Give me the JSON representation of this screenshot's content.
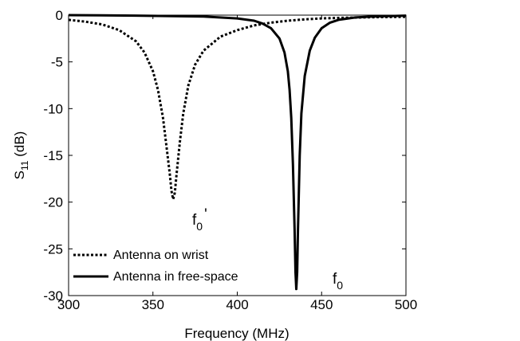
{
  "chart_data": {
    "type": "line",
    "xlabel": "Frequency (MHz)",
    "ylabel": "S",
    "ylabel_sub": "11",
    "ylabel_suffix": " (dB)",
    "xlim": [
      300,
      500
    ],
    "ylim": [
      -30,
      0
    ],
    "xticks": [
      300,
      350,
      400,
      450,
      500
    ],
    "yticks": [
      0,
      -5,
      -10,
      -15,
      -20,
      -25,
      -30
    ],
    "grid": false,
    "legend_position": "bottom-left",
    "series": [
      {
        "name": "Antenna on wrist",
        "style": "dotted",
        "x": [
          300,
          310,
          320,
          330,
          340,
          345,
          350,
          353,
          356,
          358,
          360,
          361,
          362,
          363,
          364,
          366,
          368,
          371,
          375,
          380,
          390,
          400,
          410,
          420,
          430,
          440,
          450,
          460,
          480,
          500
        ],
        "y": [
          -0.5,
          -0.7,
          -1.0,
          -1.6,
          -2.8,
          -4.0,
          -6.0,
          -8.0,
          -11.0,
          -14.0,
          -17.0,
          -18.8,
          -19.7,
          -19.0,
          -17.0,
          -13.5,
          -10.5,
          -7.5,
          -5.3,
          -3.8,
          -2.3,
          -1.6,
          -1.1,
          -0.8,
          -0.6,
          -0.45,
          -0.35,
          -0.3,
          -0.22,
          -0.18
        ]
      },
      {
        "name": "Antenna in free-space",
        "style": "solid",
        "x": [
          300,
          340,
          380,
          400,
          410,
          415,
          420,
          425,
          428,
          430,
          431,
          432,
          433,
          434,
          434.5,
          435,
          435.5,
          436,
          437,
          438,
          440,
          443,
          446,
          450,
          455,
          460,
          470,
          480,
          500
        ],
        "y": [
          0,
          -0.05,
          -0.15,
          -0.35,
          -0.6,
          -0.9,
          -1.4,
          -2.5,
          -4.0,
          -6.0,
          -8.0,
          -11.0,
          -16.0,
          -23.0,
          -27.5,
          -29.3,
          -27.5,
          -23.0,
          -15.0,
          -10.5,
          -6.5,
          -3.8,
          -2.4,
          -1.4,
          -0.8,
          -0.5,
          -0.25,
          -0.15,
          -0.05
        ]
      }
    ],
    "annotations": [
      {
        "base": "f",
        "sub": "0",
        "prime": "'",
        "x": 362,
        "y": -19.7
      },
      {
        "base": "f",
        "sub": "0",
        "prime": "",
        "x": 435,
        "y": -29.3
      }
    ]
  }
}
